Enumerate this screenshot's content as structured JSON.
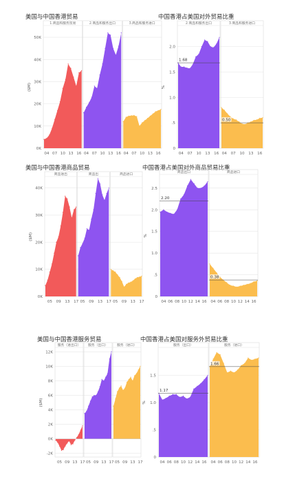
{
  "chart_data": [
    {
      "id": "c1",
      "type": "area",
      "title": "美国与中国香港贸易",
      "ylabel": "($M)",
      "ylim": [
        0,
        55000
      ],
      "yticks": [
        {
          "v": 0,
          "label": "0K"
        },
        {
          "v": 10000,
          "label": "10K"
        },
        {
          "v": 20000,
          "label": "20K"
        },
        {
          "v": 30000,
          "label": "30K"
        },
        {
          "v": 40000,
          "label": "40K"
        },
        {
          "v": 50000,
          "label": "50K"
        }
      ],
      "xlim": [
        2003,
        2017
      ],
      "xticks": [
        {
          "v": 2004,
          "label": "04"
        },
        {
          "v": 2007,
          "label": "07"
        },
        {
          "v": 2010,
          "label": "10"
        },
        {
          "v": 2013,
          "label": "13"
        },
        {
          "v": 2016,
          "label": "16"
        }
      ],
      "panels": [
        {
          "label": "1.商品和服务贸易",
          "color": "#f25a5a",
          "x": [
            2003,
            2004,
            2005,
            2006,
            2007,
            2008,
            2009,
            2010,
            2011,
            2012,
            2013,
            2014,
            2015,
            2016,
            2017
          ],
          "y": [
            4000,
            4500,
            6000,
            9000,
            13000,
            17000,
            21000,
            27000,
            31000,
            38000,
            36000,
            32000,
            28000,
            34000,
            35000
          ]
        },
        {
          "label": "2.商品和服务出口",
          "color": "#8e54f0",
          "x": [
            2003,
            2004,
            2005,
            2006,
            2007,
            2008,
            2009,
            2010,
            2011,
            2012,
            2013,
            2014,
            2015,
            2016,
            2017
          ],
          "y": [
            16000,
            18500,
            20500,
            23000,
            28000,
            27000,
            33000,
            38000,
            45000,
            52000,
            51000,
            45000,
            42000,
            46000,
            52000
          ]
        },
        {
          "label": "3.商品和服务进口",
          "color": "#fbbd4e",
          "x": [
            2003,
            2004,
            2005,
            2006,
            2007,
            2008,
            2009,
            2010,
            2011,
            2012,
            2013,
            2014,
            2015,
            2016,
            2017
          ],
          "y": [
            12000,
            14000,
            14500,
            14700,
            14800,
            14300,
            10000,
            11500,
            12500,
            13500,
            14500,
            15500,
            16500,
            17000,
            17500
          ]
        }
      ],
      "annotations": []
    },
    {
      "id": "c2",
      "type": "area",
      "title": "中国香港占美国对外贸易比重",
      "ylabel": "%",
      "ylim": [
        0,
        2.4
      ],
      "yticks": [
        {
          "v": 0,
          "label": "0"
        },
        {
          "v": 0.5,
          "label": ".5"
        },
        {
          "v": 1,
          "label": "1.0"
        },
        {
          "v": 1.5,
          "label": "1.5"
        },
        {
          "v": 2,
          "label": "2.0"
        }
      ],
      "xlim": [
        2003,
        2017
      ],
      "xticks": [
        {
          "v": 2004,
          "label": "04"
        },
        {
          "v": 2007,
          "label": "07"
        },
        {
          "v": 2010,
          "label": "10"
        },
        {
          "v": 2013,
          "label": "13"
        },
        {
          "v": 2016,
          "label": "16"
        }
      ],
      "panels": [
        {
          "label": "2.商品和服务出口",
          "color": "#8e54f0",
          "x": [
            2003,
            2004,
            2005,
            2006,
            2007,
            2008,
            2009,
            2010,
            2011,
            2012,
            2013,
            2014,
            2015,
            2016,
            2017
          ],
          "y": [
            1.68,
            1.6,
            1.6,
            1.58,
            1.57,
            1.65,
            1.8,
            1.85,
            2.0,
            2.13,
            2.1,
            2.0,
            1.98,
            2.05,
            2.18
          ]
        },
        {
          "label": "3.商品和服务进口",
          "color": "#fbbd4e",
          "x": [
            2003,
            2004,
            2005,
            2006,
            2007,
            2008,
            2009,
            2010,
            2011,
            2012,
            2013,
            2014,
            2015,
            2016,
            2017
          ],
          "y": [
            0.8,
            0.75,
            0.68,
            0.62,
            0.58,
            0.56,
            0.52,
            0.48,
            0.47,
            0.5,
            0.52,
            0.55,
            0.56,
            0.59,
            0.6
          ]
        }
      ],
      "annotations": [
        {
          "panel": 0,
          "text": "1.68",
          "value": 1.68
        },
        {
          "panel": 1,
          "text": "0.50",
          "value": 0.5
        }
      ]
    },
    {
      "id": "c3",
      "type": "area",
      "title": "美国与中国香港商品贸易",
      "ylabel": "($M)",
      "ylim": [
        0,
        44000
      ],
      "yticks": [
        {
          "v": 0,
          "label": "0K"
        },
        {
          "v": 10000,
          "label": "10K"
        },
        {
          "v": 20000,
          "label": "20K"
        },
        {
          "v": 30000,
          "label": "30K"
        },
        {
          "v": 40000,
          "label": "40K"
        }
      ],
      "xlim": [
        2003,
        2017
      ],
      "xticks": [
        {
          "v": 2005,
          "label": "05"
        },
        {
          "v": 2009,
          "label": "09"
        },
        {
          "v": 2013,
          "label": "13"
        },
        {
          "v": 2017,
          "label": "17"
        }
      ],
      "panels": [
        {
          "label": "商品进出",
          "color": "#f25a5a",
          "x": [
            2003,
            2004,
            2005,
            2006,
            2007,
            2008,
            2009,
            2010,
            2011,
            2012,
            2013,
            2014,
            2015,
            2016,
            2017
          ],
          "y": [
            4000,
            6000,
            9000,
            12000,
            16000,
            20000,
            22000,
            26000,
            31000,
            37000,
            36000,
            33000,
            29000,
            32000,
            33000
          ]
        },
        {
          "label": "商品出",
          "color": "#8e54f0",
          "x": [
            2003,
            2004,
            2005,
            2006,
            2007,
            2008,
            2009,
            2010,
            2011,
            2012,
            2013,
            2014,
            2015,
            2016,
            2017
          ],
          "y": [
            15000,
            18000,
            19500,
            21500,
            25000,
            24500,
            28500,
            32000,
            38000,
            43500,
            41500,
            37500,
            35500,
            38000,
            40000
          ]
        },
        {
          "label": "商品进口",
          "color": "#fbbd4e",
          "x": [
            2003,
            2004,
            2005,
            2006,
            2007,
            2008,
            2009,
            2010,
            2011,
            2012,
            2013,
            2014,
            2015,
            2016,
            2017
          ],
          "y": [
            10000,
            9500,
            9000,
            8000,
            7000,
            5500,
            3500,
            4500,
            5000,
            5300,
            5800,
            6500,
            7000,
            7200,
            7500
          ]
        }
      ],
      "annotations": []
    },
    {
      "id": "c4",
      "type": "area",
      "title": "中国香港占美国对外商品贸易比重",
      "ylabel": "%",
      "ylim": [
        0,
        2.8
      ],
      "yticks": [
        {
          "v": 0,
          "label": "0"
        },
        {
          "v": 0.5,
          "label": ".5"
        },
        {
          "v": 1,
          "label": "1.0"
        },
        {
          "v": 1.5,
          "label": "1.5"
        },
        {
          "v": 2,
          "label": "2.0"
        },
        {
          "v": 2.5,
          "label": "2.5"
        }
      ],
      "xlim": [
        2003,
        2017
      ],
      "xticks": [
        {
          "v": 2004,
          "label": "04"
        },
        {
          "v": 2006,
          "label": "06"
        },
        {
          "v": 2008,
          "label": "08"
        },
        {
          "v": 2010,
          "label": "10"
        },
        {
          "v": 2012,
          "label": "12"
        },
        {
          "v": 2014,
          "label": "14"
        },
        {
          "v": 2016,
          "label": "16"
        }
      ],
      "panels": [
        {
          "label": "商品出口",
          "color": "#8e54f0",
          "x": [
            2003,
            2004,
            2005,
            2006,
            2007,
            2008,
            2009,
            2010,
            2011,
            2012,
            2013,
            2014,
            2015,
            2016,
            2017
          ],
          "y": [
            1.95,
            2.0,
            1.95,
            1.92,
            1.9,
            2.0,
            2.25,
            2.35,
            2.55,
            2.7,
            2.6,
            2.5,
            2.5,
            2.55,
            2.65
          ]
        },
        {
          "label": "商品进口",
          "color": "#fbbd4e",
          "x": [
            2003,
            2004,
            2005,
            2006,
            2007,
            2008,
            2009,
            2010,
            2011,
            2012,
            2013,
            2014,
            2015,
            2016,
            2017
          ],
          "y": [
            0.75,
            0.65,
            0.55,
            0.45,
            0.38,
            0.32,
            0.26,
            0.24,
            0.22,
            0.24,
            0.26,
            0.28,
            0.3,
            0.34,
            0.36
          ]
        }
      ],
      "annotations": [
        {
          "panel": 0,
          "text": "2.20",
          "value": 2.2
        },
        {
          "panel": 1,
          "text": "0.38",
          "value": 0.38
        }
      ]
    },
    {
      "id": "c5",
      "type": "area",
      "title": "美国与中国香港服务贸易",
      "ylabel": "($M)",
      "ylim": [
        -2500,
        12500
      ],
      "yticks": [
        {
          "v": -2000,
          "label": "-2K"
        },
        {
          "v": 0,
          "label": "0K"
        },
        {
          "v": 2000,
          "label": "2K"
        },
        {
          "v": 4000,
          "label": "4K"
        },
        {
          "v": 6000,
          "label": "6K"
        },
        {
          "v": 8000,
          "label": "8K"
        },
        {
          "v": 10000,
          "label": "10K"
        },
        {
          "v": 12000,
          "label": "12K"
        }
      ],
      "xlim": [
        2003,
        2017
      ],
      "xticks": [
        {
          "v": 2005,
          "label": "05"
        },
        {
          "v": 2009,
          "label": "09"
        },
        {
          "v": 2013,
          "label": "13"
        },
        {
          "v": 2017,
          "label": "17"
        }
      ],
      "panels": [
        {
          "label": "服务（进出口）",
          "color": "#f25a5a",
          "x": [
            2003,
            2004,
            2005,
            2006,
            2007,
            2008,
            2009,
            2010,
            2011,
            2012,
            2013,
            2014,
            2015,
            2016,
            2017
          ],
          "y": [
            -200,
            -500,
            -1000,
            -1600,
            -1500,
            -1000,
            -600,
            -300,
            -800,
            -700,
            -200,
            200,
            600,
            1200,
            1800
          ]
        },
        {
          "label": "服务（出口）",
          "color": "#8e54f0",
          "x": [
            2003,
            2004,
            2005,
            2006,
            2007,
            2008,
            2009,
            2010,
            2011,
            2012,
            2013,
            2014,
            2015,
            2016,
            2017
          ],
          "y": [
            3500,
            3800,
            4500,
            5200,
            5800,
            6000,
            6000,
            6500,
            7200,
            8200,
            8000,
            8500,
            9000,
            11000,
            12000
          ]
        },
        {
          "label": "服务（进口）",
          "color": "#fbbd4e",
          "x": [
            2003,
            2004,
            2005,
            2006,
            2007,
            2008,
            2009,
            2010,
            2011,
            2012,
            2013,
            2014,
            2015,
            2016,
            2017
          ],
          "y": [
            4500,
            5500,
            6500,
            7000,
            7300,
            6700,
            7000,
            7800,
            8200,
            8500,
            8000,
            8700,
            9000,
            9500,
            10000
          ]
        }
      ],
      "annotations": []
    },
    {
      "id": "c6",
      "type": "area",
      "title": "中国香港占美国对服务外贸易比重",
      "ylabel": "%",
      "ylim": [
        0,
        2.0
      ],
      "yticks": [
        {
          "v": 0,
          "label": "0"
        },
        {
          "v": 0.5,
          "label": ".5"
        },
        {
          "v": 1,
          "label": "1.0"
        },
        {
          "v": 1.5,
          "label": "1.5"
        }
      ],
      "xlim": [
        2003,
        2017
      ],
      "xticks": [
        {
          "v": 2004,
          "label": "04"
        },
        {
          "v": 2006,
          "label": "06"
        },
        {
          "v": 2008,
          "label": "08"
        },
        {
          "v": 2010,
          "label": "10"
        },
        {
          "v": 2012,
          "label": "12"
        },
        {
          "v": 2014,
          "label": "14"
        },
        {
          "v": 2016,
          "label": "16"
        }
      ],
      "panels": [
        {
          "label": "服务（出口）",
          "color": "#8e54f0",
          "x": [
            2003,
            2004,
            2005,
            2006,
            2007,
            2008,
            2009,
            2010,
            2011,
            2012,
            2013,
            2014,
            2015,
            2016,
            2017
          ],
          "y": [
            1.17,
            1.05,
            1.08,
            1.12,
            1.15,
            1.15,
            1.1,
            1.12,
            1.07,
            1.1,
            1.25,
            1.3,
            1.35,
            1.42,
            1.5
          ]
        },
        {
          "label": "服务（进口）",
          "color": "#fbbd4e",
          "x": [
            2003,
            2004,
            2005,
            2006,
            2007,
            2008,
            2009,
            2010,
            2011,
            2012,
            2013,
            2014,
            2015,
            2016,
            2017
          ],
          "y": [
            1.66,
            1.8,
            1.92,
            1.88,
            1.72,
            1.55,
            1.58,
            1.55,
            1.6,
            1.68,
            1.72,
            1.82,
            1.78,
            1.8,
            1.82
          ]
        }
      ],
      "annotations": [
        {
          "panel": 0,
          "text": "1.17",
          "value": 1.17
        },
        {
          "panel": 1,
          "text": "1.66",
          "value": 1.66
        }
      ]
    }
  ]
}
